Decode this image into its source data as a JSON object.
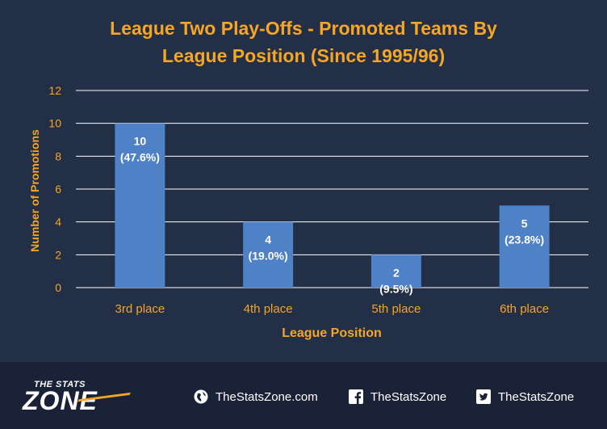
{
  "title_lines": [
    "League Two  Play-Offs - Promoted Teams By",
    "League Position (Since 1995/96)"
  ],
  "chart_data": {
    "type": "bar",
    "title": "League Two  Play-Offs - Promoted Teams By League Position (Since 1995/96)",
    "xlabel": "League Position",
    "ylabel": "Number of Promotions",
    "categories": [
      "3rd place",
      "4th place",
      "5th place",
      "6th place"
    ],
    "values": [
      10,
      4,
      2,
      5
    ],
    "data_labels": [
      {
        "value": "10",
        "pct": "(47.6%)"
      },
      {
        "value": "4",
        "pct": "(19.0%)"
      },
      {
        "value": "2",
        "pct": "(9.5%)"
      },
      {
        "value": "5",
        "pct": "(23.8%)"
      }
    ],
    "ylim": [
      0,
      12
    ],
    "yticks": [
      "0",
      "2",
      "4",
      "6",
      "8",
      "10",
      "12"
    ],
    "grid": true,
    "colors": {
      "bar": "#4f81c7",
      "grid": "#ffffff",
      "axis_text": "#f5a623",
      "label_text": "#ffffff"
    }
  },
  "footer": {
    "logo_top": "THE STATS",
    "logo_main": "ZONE",
    "links": [
      {
        "icon": "globe-icon",
        "text": "TheStatsZone.com"
      },
      {
        "icon": "facebook-icon",
        "text": "TheStatsZone"
      },
      {
        "icon": "twitter-icon",
        "text": "TheStatsZone"
      }
    ]
  },
  "colors": {
    "background": "#232e47",
    "footer": "#1a2238",
    "accent": "#f5a623"
  }
}
